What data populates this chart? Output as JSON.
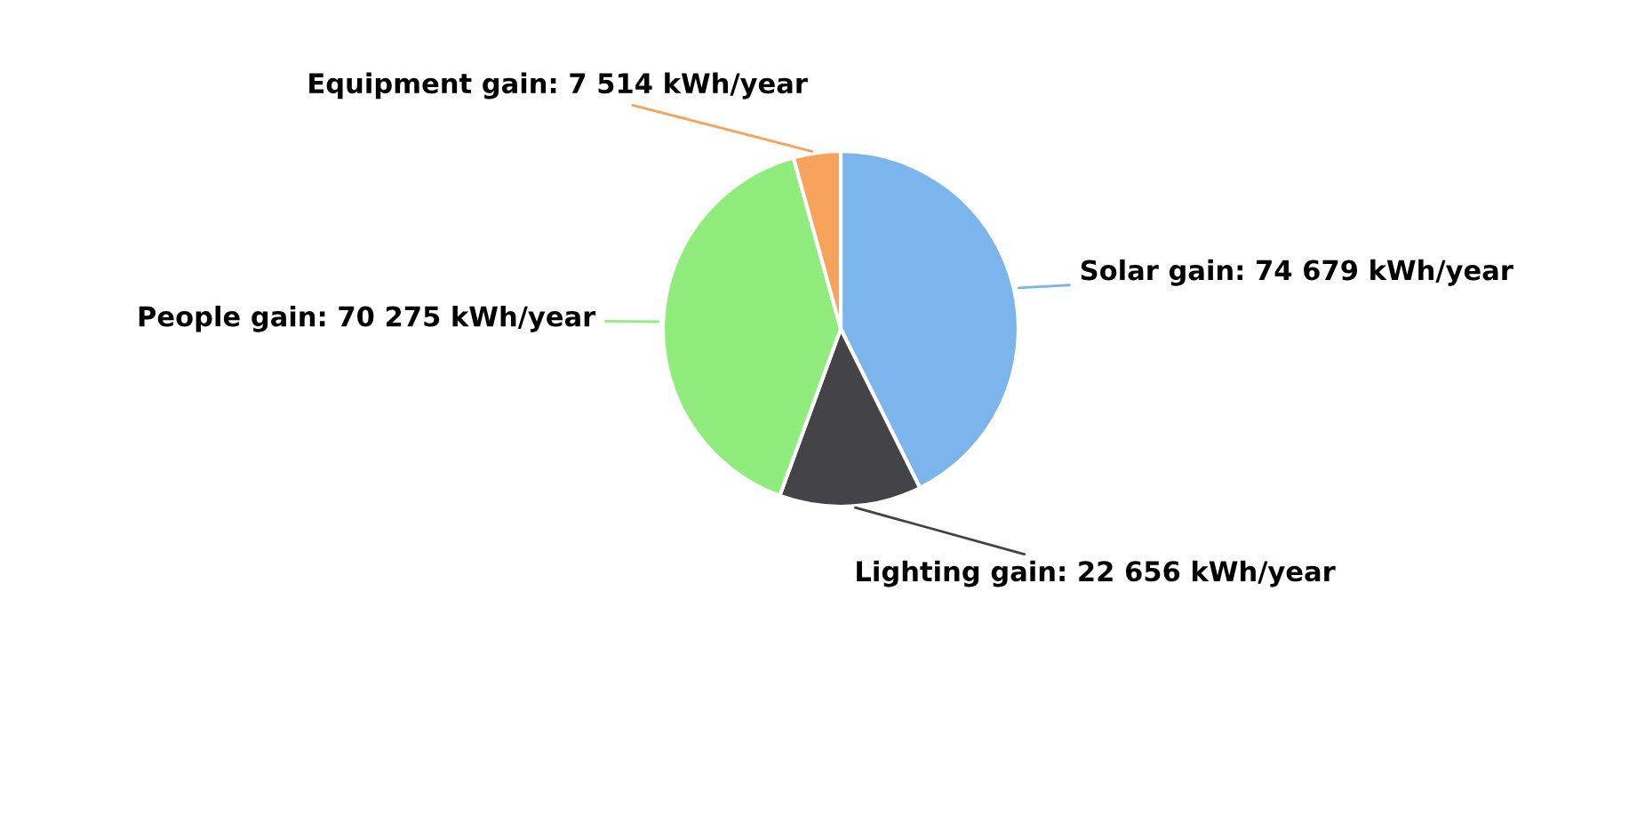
{
  "chart_data": {
    "type": "pie",
    "categories": [
      "Solar gain",
      "Lighting gain",
      "People gain",
      "Equipment gain"
    ],
    "values": [
      74679,
      22656,
      70275,
      7514
    ],
    "value_labels": [
      "74 679 kWh/year",
      "22 656 kWh/year",
      "70 275 kWh/year",
      "7 514 kWh/year"
    ],
    "colors": [
      "#7cb5ec",
      "#434348",
      "#90ed7d",
      "#f7a35c"
    ],
    "legend": false
  }
}
